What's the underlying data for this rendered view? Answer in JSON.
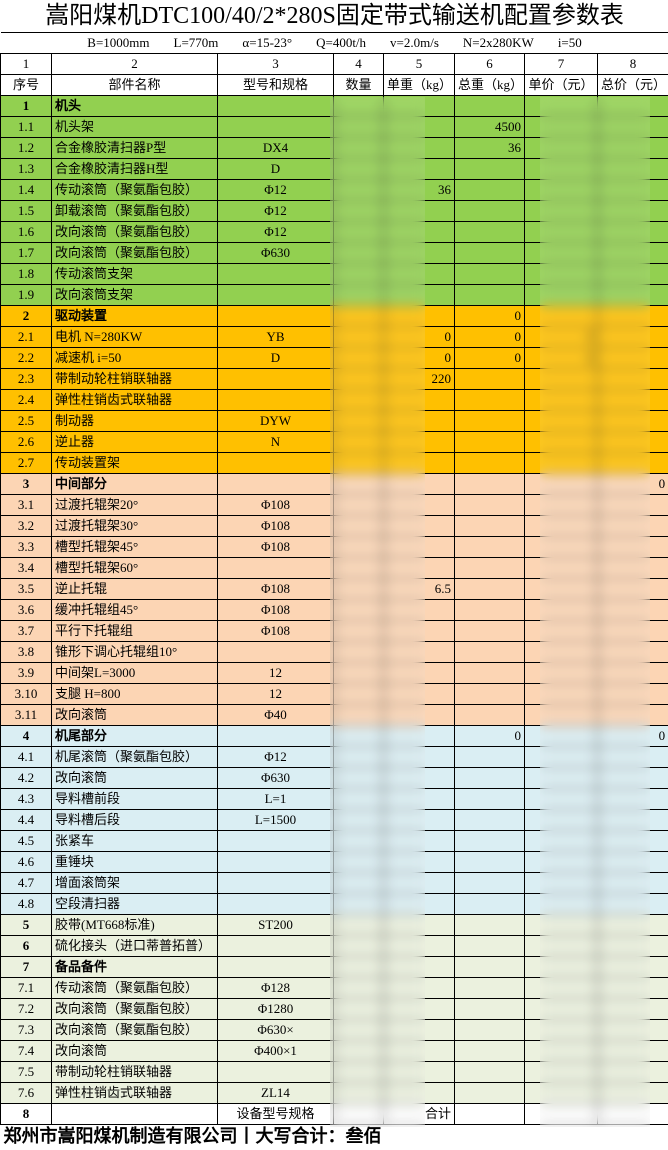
{
  "title": "嵩阳煤机DTC100/40/2*280S固定带式输送机配置参数表",
  "params": [
    "B=1000mm",
    "L=770m",
    "α=15-23°",
    "Q=400t/h",
    "v=2.0m/s",
    "N=2x280KW",
    "i=50"
  ],
  "column_numbers": [
    "1",
    "2",
    "3",
    "4",
    "5",
    "6",
    "7",
    "8"
  ],
  "headers": [
    "序号",
    "部件名称",
    "型号和规格",
    "数量",
    "单重（kg）",
    "总重（kg）",
    "单价（元）",
    "总价（元）"
  ],
  "colors": {
    "head": "#92d050",
    "drive": "#ffc000",
    "middle": "#fcd5b4",
    "tail": "#daeef3",
    "other": "#ebf1de",
    "total": "#ffffff"
  },
  "rows": [
    {
      "no": "1",
      "name": "机头",
      "spec": "",
      "qty": "",
      "uw": "",
      "tw": "",
      "up": "",
      "tp": "",
      "section": true,
      "group": "head"
    },
    {
      "no": "1.1",
      "name": "机头架",
      "spec": "",
      "qty": "",
      "uw": "",
      "tw": "4500",
      "up": "",
      "tp": "",
      "group": "head"
    },
    {
      "no": "1.2",
      "name": "合金橡胶清扫器P型",
      "spec": "DX4",
      "qty": "",
      "uw": "",
      "tw": "36",
      "up": "",
      "tp": "",
      "group": "head"
    },
    {
      "no": "1.3",
      "name": "合金橡胶清扫器H型",
      "spec": "D",
      "qty": "",
      "uw": "",
      "tw": "",
      "up": "",
      "tp": "",
      "group": "head"
    },
    {
      "no": "1.4",
      "name": "传动滚筒（聚氨酯包胶）",
      "spec": "Φ12",
      "qty": "",
      "uw": "36",
      "tw": "",
      "up": "",
      "tp": "",
      "group": "head"
    },
    {
      "no": "1.5",
      "name": "卸载滚筒（聚氨酯包胶）",
      "spec": "Φ12",
      "qty": "",
      "uw": "",
      "tw": "",
      "up": "",
      "tp": "",
      "group": "head"
    },
    {
      "no": "1.6",
      "name": "改向滚筒（聚氨酯包胶）",
      "spec": "Φ12",
      "qty": "",
      "uw": "",
      "tw": "",
      "up": "",
      "tp": "",
      "group": "head"
    },
    {
      "no": "1.7",
      "name": "改向滚筒（聚氨酯包胶）",
      "spec": "Φ630",
      "qty": "",
      "uw": "",
      "tw": "",
      "up": "",
      "tp": "",
      "group": "head"
    },
    {
      "no": "1.8",
      "name": "传动滚筒支架",
      "spec": "",
      "qty": "",
      "uw": "",
      "tw": "",
      "up": "",
      "tp": "",
      "group": "head"
    },
    {
      "no": "1.9",
      "name": "改向滚筒支架",
      "spec": "",
      "qty": "",
      "uw": "",
      "tw": "",
      "up": "",
      "tp": "",
      "group": "head"
    },
    {
      "no": "2",
      "name": "驱动装置",
      "spec": "",
      "qty": "",
      "uw": "",
      "tw": "0",
      "up": "",
      "tp": "",
      "section": true,
      "group": "drive"
    },
    {
      "no": "2.1",
      "name": "电机 N=280KW",
      "spec": "YB",
      "qty": "",
      "uw": "0",
      "tw": "0",
      "up": "0",
      "tp": "",
      "group": "drive"
    },
    {
      "no": "2.2",
      "name": "减速机 i=50",
      "spec": "D",
      "qty": "",
      "uw": "0",
      "tw": "0",
      "up": "0",
      "tp": "",
      "group": "drive"
    },
    {
      "no": "2.3",
      "name": "带制动轮柱销联轴器",
      "spec": "",
      "qty": "",
      "uw": "220",
      "tw": "",
      "up": "",
      "tp": "",
      "group": "drive"
    },
    {
      "no": "2.4",
      "name": "弹性柱销齿式联轴器",
      "spec": "",
      "qty": "",
      "uw": "",
      "tw": "",
      "up": "",
      "tp": "",
      "group": "drive"
    },
    {
      "no": "2.5",
      "name": "制动器",
      "spec": "DYW",
      "qty": "",
      "uw": "",
      "tw": "",
      "up": "",
      "tp": "",
      "group": "drive"
    },
    {
      "no": "2.6",
      "name": "逆止器",
      "spec": "N",
      "qty": "",
      "uw": "",
      "tw": "",
      "up": "",
      "tp": "",
      "group": "drive"
    },
    {
      "no": "2.7",
      "name": "传动装置架",
      "spec": "",
      "qty": "",
      "uw": "",
      "tw": "",
      "up": "",
      "tp": "",
      "group": "drive"
    },
    {
      "no": "3",
      "name": "中间部分",
      "spec": "",
      "qty": "",
      "uw": "",
      "tw": "",
      "up": "",
      "tp": "0",
      "section": true,
      "group": "middle"
    },
    {
      "no": "3.1",
      "name": "过渡托辊架20°",
      "spec": "Φ108",
      "qty": "",
      "uw": "",
      "tw": "",
      "up": "",
      "tp": "",
      "group": "middle"
    },
    {
      "no": "3.2",
      "name": "过渡托辊架30°",
      "spec": "Φ108",
      "qty": "",
      "uw": "",
      "tw": "",
      "up": "",
      "tp": "",
      "group": "middle"
    },
    {
      "no": "3.3",
      "name": "槽型托辊架45°",
      "spec": "Φ108",
      "qty": "",
      "uw": "",
      "tw": "",
      "up": "",
      "tp": "",
      "group": "middle"
    },
    {
      "no": "3.4",
      "name": "槽型托辊架60°",
      "spec": "",
      "qty": "",
      "uw": "",
      "tw": "",
      "up": "",
      "tp": "",
      "group": "middle"
    },
    {
      "no": "3.5",
      "name": "逆止托辊",
      "spec": "Φ108",
      "qty": "",
      "uw": "6.5",
      "tw": "",
      "up": "",
      "tp": "",
      "group": "middle"
    },
    {
      "no": "3.6",
      "name": "缓冲托辊组45°",
      "spec": "Φ108",
      "qty": "",
      "uw": "",
      "tw": "",
      "up": "",
      "tp": "",
      "group": "middle"
    },
    {
      "no": "3.7",
      "name": "平行下托辊组",
      "spec": "Φ108",
      "qty": "",
      "uw": "",
      "tw": "",
      "up": "",
      "tp": "",
      "group": "middle"
    },
    {
      "no": "3.8",
      "name": "锥形下调心托辊组10°",
      "spec": "",
      "qty": "",
      "uw": "",
      "tw": "",
      "up": "",
      "tp": "",
      "group": "middle"
    },
    {
      "no": "3.9",
      "name": "中间架L=3000",
      "spec": "12",
      "qty": "",
      "uw": "",
      "tw": "",
      "up": "",
      "tp": "",
      "group": "middle"
    },
    {
      "no": "3.10",
      "name": "支腿 H=800",
      "spec": "12",
      "qty": "",
      "uw": "",
      "tw": "",
      "up": "",
      "tp": "",
      "group": "middle"
    },
    {
      "no": "3.11",
      "name": "改向滚筒",
      "spec": "Φ40",
      "qty": "",
      "uw": "",
      "tw": "",
      "up": "",
      "tp": "",
      "group": "middle"
    },
    {
      "no": "4",
      "name": "机尾部分",
      "spec": "",
      "qty": "",
      "uw": "",
      "tw": "0",
      "up": "",
      "tp": "0",
      "section": true,
      "group": "tail"
    },
    {
      "no": "4.1",
      "name": "机尾滚筒（聚氨酯包胶）",
      "spec": "Φ12",
      "qty": "",
      "uw": "",
      "tw": "",
      "up": "",
      "tp": "",
      "group": "tail"
    },
    {
      "no": "4.2",
      "name": "改向滚筒",
      "spec": "Φ630",
      "qty": "",
      "uw": "",
      "tw": "",
      "up": "",
      "tp": "",
      "group": "tail"
    },
    {
      "no": "4.3",
      "name": "导料槽前段",
      "spec": "L=1",
      "qty": "",
      "uw": "",
      "tw": "",
      "up": "",
      "tp": "",
      "group": "tail"
    },
    {
      "no": "4.4",
      "name": "导料槽后段",
      "spec": "L=1500",
      "qty": "",
      "uw": "",
      "tw": "",
      "up": "",
      "tp": "",
      "group": "tail"
    },
    {
      "no": "4.5",
      "name": "张紧车",
      "spec": "",
      "qty": "",
      "uw": "",
      "tw": "",
      "up": "",
      "tp": "",
      "group": "tail"
    },
    {
      "no": "4.6",
      "name": "重锤块",
      "spec": "",
      "qty": "",
      "uw": "",
      "tw": "",
      "up": "",
      "tp": "",
      "group": "tail"
    },
    {
      "no": "4.7",
      "name": "增面滚筒架",
      "spec": "",
      "qty": "",
      "uw": "",
      "tw": "",
      "up": "",
      "tp": "",
      "group": "tail"
    },
    {
      "no": "4.8",
      "name": "空段清扫器",
      "spec": "",
      "qty": "",
      "uw": "",
      "tw": "",
      "up": "",
      "tp": "",
      "group": "tail"
    },
    {
      "no": "5",
      "name": "胶带(MT668标准)",
      "spec": "ST200",
      "qty": "",
      "uw": "",
      "tw": "",
      "up": "",
      "tp": "",
      "numbold": true,
      "group": "other"
    },
    {
      "no": "6",
      "name": "硫化接头（进口蒂普拓普）",
      "spec": "",
      "qty": "",
      "uw": "",
      "tw": "",
      "up": "",
      "tp": "",
      "numbold": true,
      "group": "other"
    },
    {
      "no": "7",
      "name": "备品备件",
      "spec": "",
      "qty": "",
      "uw": "",
      "tw": "",
      "up": "",
      "tp": "",
      "section": true,
      "group": "other"
    },
    {
      "no": "7.1",
      "name": "传动滚筒（聚氨酯包胶）",
      "spec": "Φ128",
      "qty": "",
      "uw": "",
      "tw": "",
      "up": "",
      "tp": "",
      "group": "other"
    },
    {
      "no": "7.2",
      "name": "改向滚筒（聚氨酯包胶）",
      "spec": "Φ1280",
      "qty": "",
      "uw": "",
      "tw": "",
      "up": "",
      "tp": "",
      "group": "other"
    },
    {
      "no": "7.3",
      "name": "改向滚筒（聚氨酯包胶）",
      "spec": "Φ630×",
      "qty": "",
      "uw": "",
      "tw": "",
      "up": "",
      "tp": "",
      "group": "other"
    },
    {
      "no": "7.4",
      "name": "改向滚筒",
      "spec": "Φ400×1",
      "qty": "",
      "uw": "",
      "tw": "",
      "up": "",
      "tp": "",
      "group": "other"
    },
    {
      "no": "7.5",
      "name": "带制动轮柱销联轴器",
      "spec": "",
      "qty": "",
      "uw": "",
      "tw": "",
      "up": "",
      "tp": "",
      "group": "other"
    },
    {
      "no": "7.6",
      "name": "弹性柱销齿式联轴器",
      "spec": "ZL14",
      "qty": "",
      "uw": "",
      "tw": "",
      "up": "",
      "tp": "",
      "group": "other"
    },
    {
      "no": "8",
      "name": "",
      "spec": "设备型号规格",
      "qty": "",
      "uw": "合计",
      "tw": "",
      "up": "",
      "tp": "",
      "numbold": true,
      "group": "total"
    }
  ],
  "footer": "郑州市嵩阳煤机制造有限公司丨大写合计：叁佰"
}
